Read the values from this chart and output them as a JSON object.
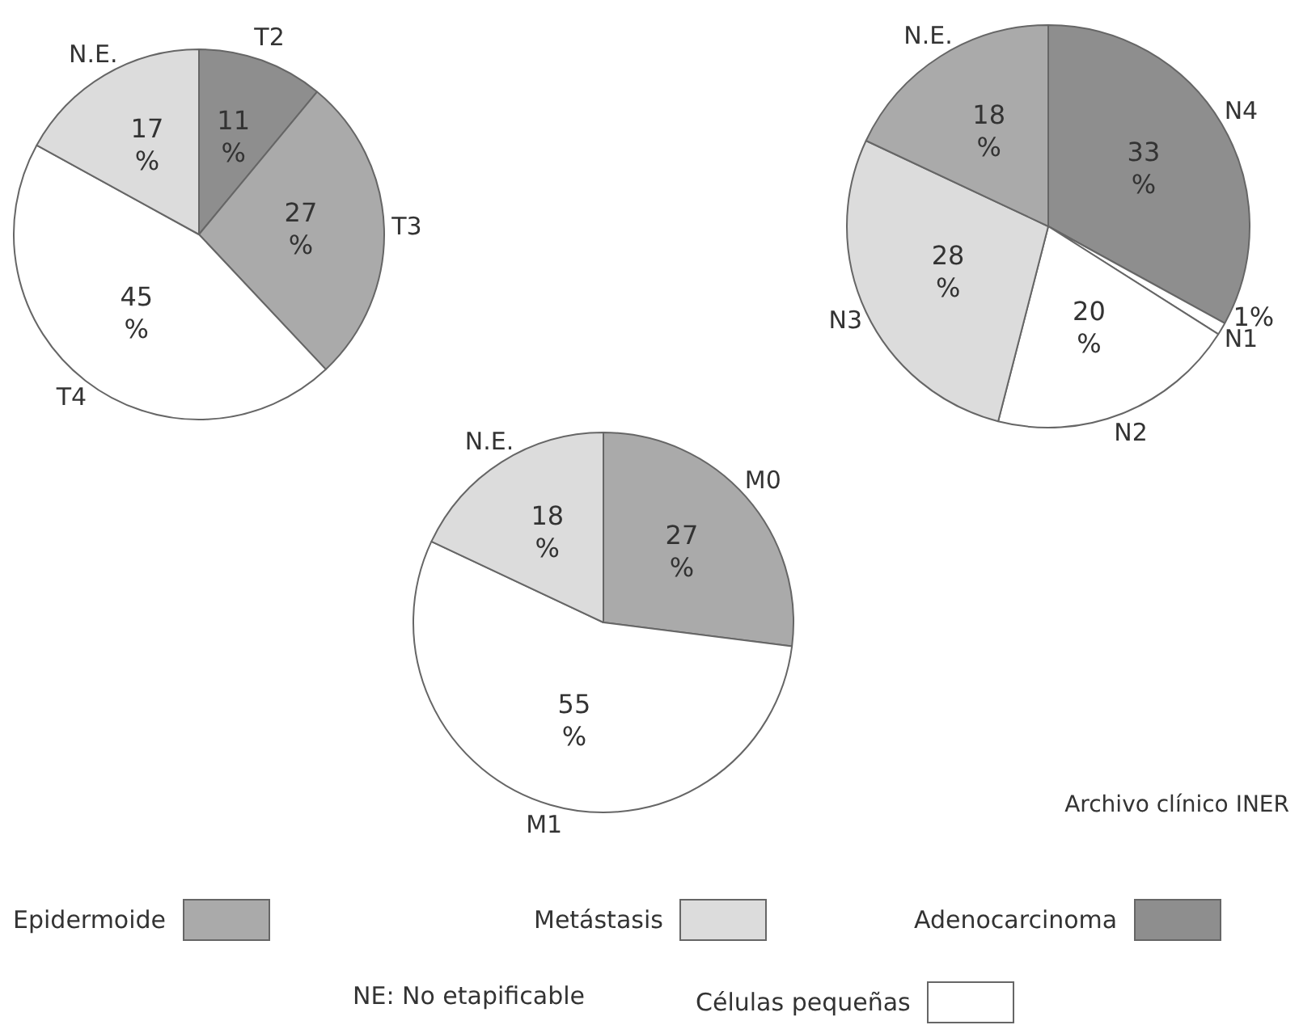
{
  "chart_data": [
    {
      "type": "pie",
      "categories": [
        "T2",
        "T3",
        "T4",
        "N.E."
      ],
      "values": [
        11,
        27,
        45,
        17
      ],
      "colors": [
        "#8e8e8e",
        "#aaaaaa",
        "#ffffff",
        "#dcdcdc"
      ],
      "value_labels": [
        "11 %",
        "27 %",
        "45 %",
        "17 %"
      ]
    },
    {
      "type": "pie",
      "categories": [
        "N4",
        "N1",
        "N2",
        "N3",
        "N.E."
      ],
      "values": [
        33,
        1,
        20,
        28,
        18
      ],
      "colors": [
        "#8e8e8e",
        "#ffffff",
        "#ffffff",
        "#dcdcdc",
        "#aaaaaa"
      ],
      "value_labels": [
        "33 %",
        "1%",
        "20 %",
        "28 %",
        "18 %"
      ]
    },
    {
      "type": "pie",
      "categories": [
        "M0",
        "M1",
        "N.E."
      ],
      "values": [
        27,
        55,
        18
      ],
      "colors": [
        "#aaaaaa",
        "#ffffff",
        "#dcdcdc"
      ],
      "value_labels": [
        "27 %",
        "55 %",
        "18 %"
      ],
      "annotations": [
        "Archivo clínico INER"
      ]
    },
    {
      "type": "other",
      "categories": [
        "Epidermoide",
        "Metástasis",
        "Adenocarcinoma",
        "NE: No etapificable",
        "Células pequeñas"
      ],
      "colors": [
        "#aaaaaa",
        "#dcdcdc",
        "#8e8e8e",
        null,
        "#ffffff"
      ]
    }
  ]
}
